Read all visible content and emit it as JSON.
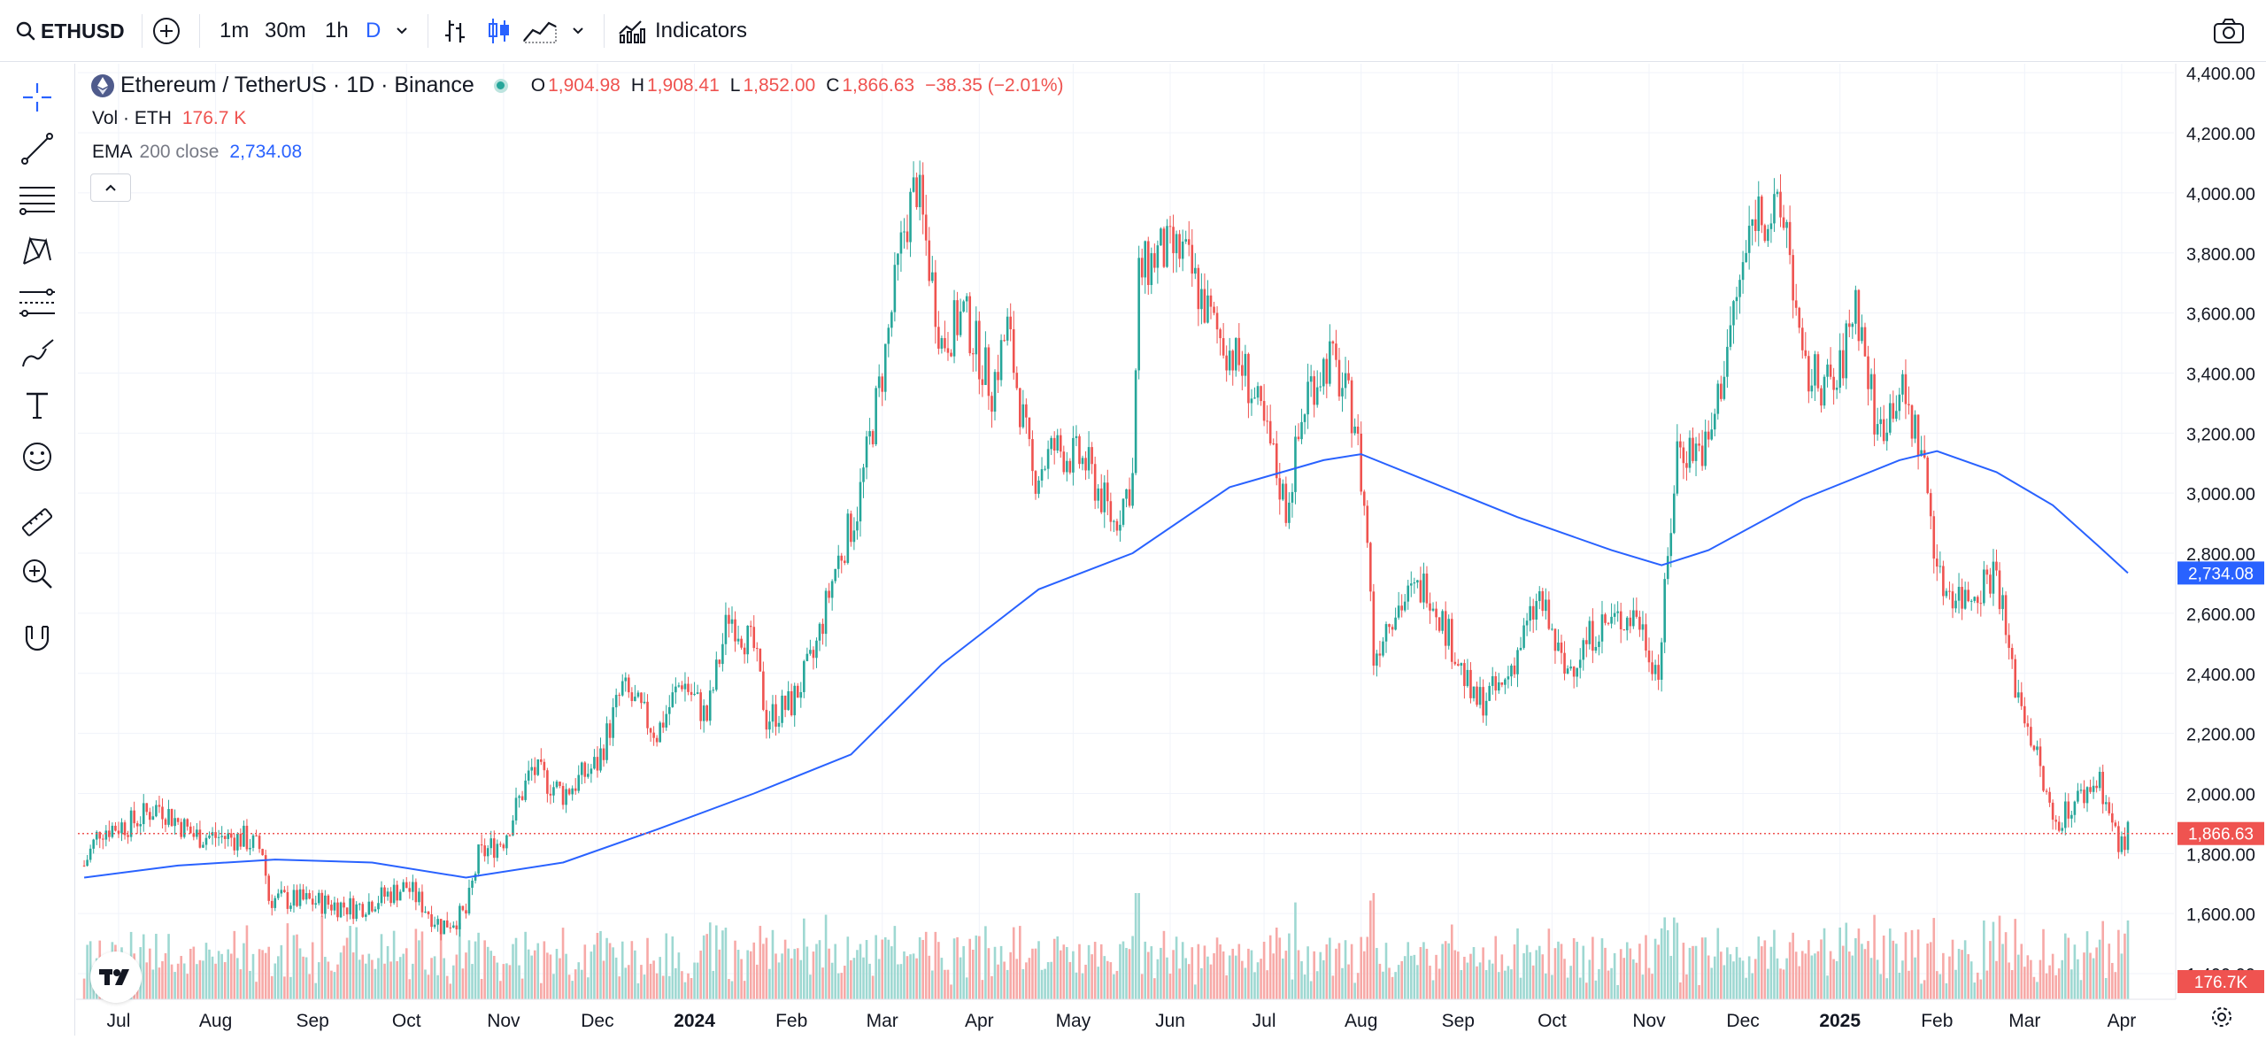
{
  "toolbar": {
    "symbol": "ETHUSD",
    "intervals": [
      "1m",
      "30m",
      "1h",
      "D"
    ],
    "active_interval": "D",
    "indicators_label": "Indicators"
  },
  "legend": {
    "title": "Ethereum / TetherUS · 1D · Binance",
    "o_label": "O",
    "o_value": "1,904.98",
    "h_label": "H",
    "h_value": "1,908.41",
    "l_label": "L",
    "l_value": "1,852.00",
    "c_label": "C",
    "c_value": "1,866.63",
    "change": "−38.35 (−2.01%)",
    "vol_label": "Vol · ETH",
    "vol_value": "176.7 K",
    "ema_label": "EMA",
    "ema_params": "200 close",
    "ema_value": "2,734.08"
  },
  "colors": {
    "up": "#26a69a",
    "down": "#ef5350",
    "ema": "#2962ff",
    "up_volume": "#9ed8d2",
    "down_volume": "#f7a9a7",
    "last_price_bg": "#ef5350",
    "ema_label_bg": "#2962ff"
  },
  "chart_data": {
    "type": "candlestick",
    "symbol": "ETH/USDT",
    "interval": "1D",
    "yticks": [
      "4,400.00",
      "4,200.00",
      "4,000.00",
      "3,800.00",
      "3,600.00",
      "3,400.00",
      "3,200.00",
      "3,000.00",
      "2,800.00",
      "2,600.00",
      "2,400.00",
      "2,200.00",
      "2,000.00",
      "1,800.00",
      "1,600.00",
      "1,400.00"
    ],
    "ylim": [
      1350,
      4430
    ],
    "xticks": [
      "Jul",
      "Aug",
      "Sep",
      "Oct",
      "Nov",
      "Dec",
      "2024",
      "Feb",
      "Mar",
      "Apr",
      "May",
      "Jun",
      "Jul",
      "Aug",
      "Sep",
      "Oct",
      "Nov",
      "Dec",
      "2025",
      "Feb",
      "Mar",
      "Apr"
    ],
    "bold_xticks": [
      "2024",
      "2025"
    ],
    "last_price_label": "1,866.63",
    "last_price": 1866.63,
    "ema_label": "2,734.08",
    "ema_last": 2734.08,
    "volume_label": "176.7K",
    "price_path": [
      {
        "date": "2023-06-20",
        "close": 1760
      },
      {
        "date": "2023-06-25",
        "close": 1880
      },
      {
        "date": "2023-07-05",
        "close": 1900
      },
      {
        "date": "2023-07-14",
        "close": 1960
      },
      {
        "date": "2023-07-25",
        "close": 1860
      },
      {
        "date": "2023-08-10",
        "close": 1850
      },
      {
        "date": "2023-08-16",
        "close": 1810
      },
      {
        "date": "2023-08-18",
        "close": 1650
      },
      {
        "date": "2023-09-01",
        "close": 1640
      },
      {
        "date": "2023-09-15",
        "close": 1620
      },
      {
        "date": "2023-10-01",
        "close": 1690
      },
      {
        "date": "2023-10-12",
        "close": 1560
      },
      {
        "date": "2023-10-20",
        "close": 1600
      },
      {
        "date": "2023-10-24",
        "close": 1790
      },
      {
        "date": "2023-11-01",
        "close": 1850
      },
      {
        "date": "2023-11-10",
        "close": 2080
      },
      {
        "date": "2023-11-20",
        "close": 2000
      },
      {
        "date": "2023-12-01",
        "close": 2100
      },
      {
        "date": "2023-12-09",
        "close": 2350
      },
      {
        "date": "2023-12-20",
        "close": 2200
      },
      {
        "date": "2023-12-28",
        "close": 2380
      },
      {
        "date": "2024-01-05",
        "close": 2250
      },
      {
        "date": "2024-01-12",
        "close": 2600
      },
      {
        "date": "2024-01-20",
        "close": 2480
      },
      {
        "date": "2024-01-24",
        "close": 2250
      },
      {
        "date": "2024-02-01",
        "close": 2300
      },
      {
        "date": "2024-02-08",
        "close": 2450
      },
      {
        "date": "2024-02-15",
        "close": 2750
      },
      {
        "date": "2024-02-22",
        "close": 2950
      },
      {
        "date": "2024-03-01",
        "close": 3400
      },
      {
        "date": "2024-03-08",
        "close": 3880
      },
      {
        "date": "2024-03-12",
        "close": 4030
      },
      {
        "date": "2024-03-20",
        "close": 3500
      },
      {
        "date": "2024-03-27",
        "close": 3600
      },
      {
        "date": "2024-04-05",
        "close": 3350
      },
      {
        "date": "2024-04-10",
        "close": 3550
      },
      {
        "date": "2024-04-18",
        "close": 3050
      },
      {
        "date": "2024-04-25",
        "close": 3150
      },
      {
        "date": "2024-05-05",
        "close": 3100
      },
      {
        "date": "2024-05-14",
        "close": 2900
      },
      {
        "date": "2024-05-20",
        "close": 3050
      },
      {
        "date": "2024-05-22",
        "close": 3720
      },
      {
        "date": "2024-05-28",
        "close": 3800
      },
      {
        "date": "2024-06-05",
        "close": 3800
      },
      {
        "date": "2024-06-15",
        "close": 3550
      },
      {
        "date": "2024-06-25",
        "close": 3400
      },
      {
        "date": "2024-07-03",
        "close": 3150
      },
      {
        "date": "2024-07-08",
        "close": 2950
      },
      {
        "date": "2024-07-15",
        "close": 3350
      },
      {
        "date": "2024-07-22",
        "close": 3450
      },
      {
        "date": "2024-07-30",
        "close": 3250
      },
      {
        "date": "2024-08-03",
        "close": 2850
      },
      {
        "date": "2024-08-05",
        "close": 2450
      },
      {
        "date": "2024-08-10",
        "close": 2600
      },
      {
        "date": "2024-08-22",
        "close": 2700
      },
      {
        "date": "2024-08-30",
        "close": 2500
      },
      {
        "date": "2024-09-06",
        "close": 2300
      },
      {
        "date": "2024-09-15",
        "close": 2350
      },
      {
        "date": "2024-09-27",
        "close": 2650
      },
      {
        "date": "2024-10-05",
        "close": 2400
      },
      {
        "date": "2024-10-15",
        "close": 2550
      },
      {
        "date": "2024-10-28",
        "close": 2600
      },
      {
        "date": "2024-11-04",
        "close": 2400
      },
      {
        "date": "2024-11-10",
        "close": 3150
      },
      {
        "date": "2024-11-20",
        "close": 3150
      },
      {
        "date": "2024-11-28",
        "close": 3600
      },
      {
        "date": "2024-12-05",
        "close": 3950
      },
      {
        "date": "2024-12-15",
        "close": 3900
      },
      {
        "date": "2024-12-20",
        "close": 3400
      },
      {
        "date": "2024-12-31",
        "close": 3350
      },
      {
        "date": "2025-01-06",
        "close": 3650
      },
      {
        "date": "2025-01-13",
        "close": 3200
      },
      {
        "date": "2025-01-20",
        "close": 3350
      },
      {
        "date": "2025-01-27",
        "close": 3150
      },
      {
        "date": "2025-02-02",
        "close": 2700
      },
      {
        "date": "2025-02-10",
        "close": 2650
      },
      {
        "date": "2025-02-20",
        "close": 2750
      },
      {
        "date": "2025-02-25",
        "close": 2400
      },
      {
        "date": "2025-03-03",
        "close": 2200
      },
      {
        "date": "2025-03-10",
        "close": 1900
      },
      {
        "date": "2025-03-20",
        "close": 2000
      },
      {
        "date": "2025-03-25",
        "close": 2050
      },
      {
        "date": "2025-03-31",
        "close": 1820
      },
      {
        "date": "2025-04-03",
        "close": 1866
      }
    ],
    "ema_path": [
      {
        "date": "2023-06-20",
        "value": 1720
      },
      {
        "date": "2023-07-20",
        "value": 1760
      },
      {
        "date": "2023-08-20",
        "value": 1780
      },
      {
        "date": "2023-09-20",
        "value": 1770
      },
      {
        "date": "2023-10-20",
        "value": 1720
      },
      {
        "date": "2023-11-20",
        "value": 1770
      },
      {
        "date": "2023-12-20",
        "value": 1880
      },
      {
        "date": "2024-01-20",
        "value": 2000
      },
      {
        "date": "2024-02-20",
        "value": 2130
      },
      {
        "date": "2024-03-20",
        "value": 2430
      },
      {
        "date": "2024-04-20",
        "value": 2680
      },
      {
        "date": "2024-05-20",
        "value": 2800
      },
      {
        "date": "2024-06-20",
        "value": 3020
      },
      {
        "date": "2024-07-20",
        "value": 3110
      },
      {
        "date": "2024-08-01",
        "value": 3130
      },
      {
        "date": "2024-08-20",
        "value": 3050
      },
      {
        "date": "2024-09-20",
        "value": 2920
      },
      {
        "date": "2024-10-20",
        "value": 2810
      },
      {
        "date": "2024-11-05",
        "value": 2760
      },
      {
        "date": "2024-11-20",
        "value": 2810
      },
      {
        "date": "2024-12-20",
        "value": 2980
      },
      {
        "date": "2025-01-20",
        "value": 3110
      },
      {
        "date": "2025-02-01",
        "value": 3140
      },
      {
        "date": "2025-02-20",
        "value": 3070
      },
      {
        "date": "2025-03-10",
        "value": 2960
      },
      {
        "date": "2025-03-25",
        "value": 2820
      },
      {
        "date": "2025-04-03",
        "value": 2734
      }
    ]
  }
}
